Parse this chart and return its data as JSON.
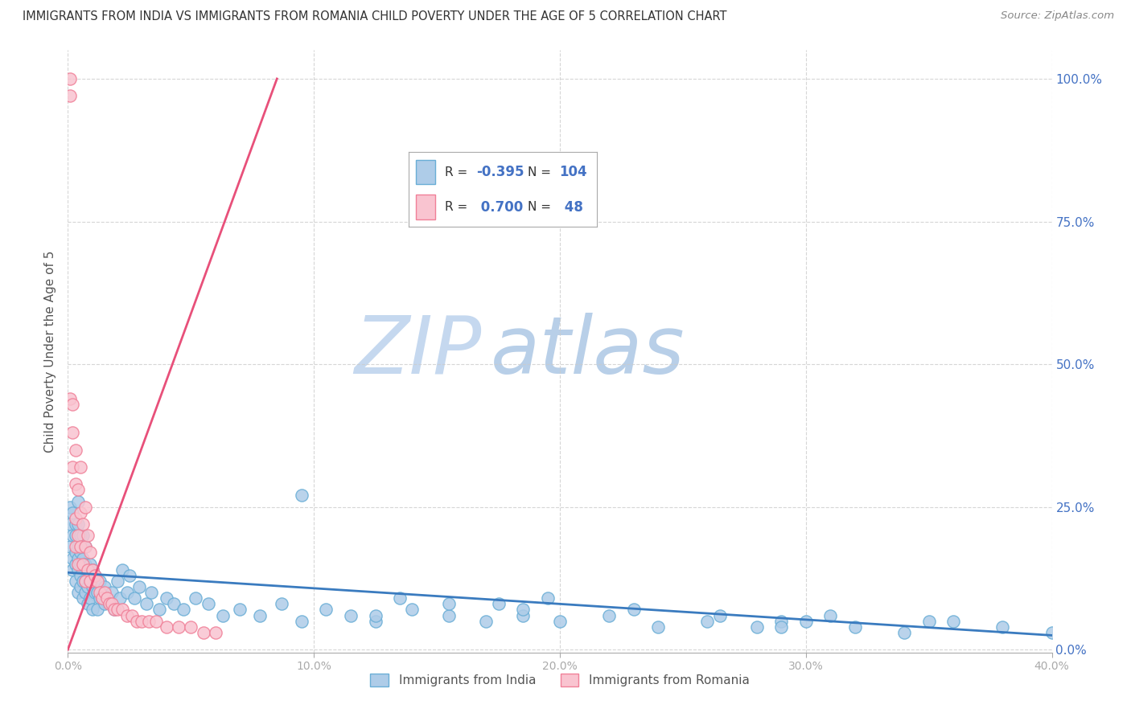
{
  "title": "IMMIGRANTS FROM INDIA VS IMMIGRANTS FROM ROMANIA CHILD POVERTY UNDER THE AGE OF 5 CORRELATION CHART",
  "source": "Source: ZipAtlas.com",
  "ylabel": "Child Poverty Under the Age of 5",
  "india_R": -0.395,
  "india_N": 104,
  "romania_R": 0.7,
  "romania_N": 48,
  "india_color": "#aecce8",
  "india_edge_color": "#6aaed6",
  "india_line_color": "#3a7bbf",
  "romania_color": "#f9c4d0",
  "romania_edge_color": "#f08098",
  "romania_line_color": "#e8507a",
  "title_color": "#333333",
  "source_color": "#666666",
  "r_value_color": "#4472c4",
  "n_value_color": "#4472c4",
  "label_color": "#4472c4",
  "watermark_zip_color": "#c5d8ef",
  "watermark_atlas_color": "#c5d8ef",
  "background_color": "#ffffff",
  "grid_color": "#cccccc",
  "axis_color": "#aaaaaa",
  "xlim": [
    0.0,
    0.4
  ],
  "ylim": [
    -0.005,
    1.05
  ],
  "india_trend_x": [
    0.0,
    0.4
  ],
  "india_trend_y": [
    0.135,
    0.025
  ],
  "romania_trend_x": [
    0.0,
    0.085
  ],
  "romania_trend_y": [
    0.0,
    1.0
  ],
  "india_x": [
    0.001,
    0.001,
    0.001,
    0.002,
    0.002,
    0.002,
    0.002,
    0.003,
    0.003,
    0.003,
    0.003,
    0.003,
    0.004,
    0.004,
    0.004,
    0.004,
    0.004,
    0.004,
    0.005,
    0.005,
    0.005,
    0.005,
    0.005,
    0.006,
    0.006,
    0.006,
    0.006,
    0.007,
    0.007,
    0.007,
    0.007,
    0.008,
    0.008,
    0.008,
    0.009,
    0.009,
    0.009,
    0.01,
    0.01,
    0.01,
    0.011,
    0.011,
    0.012,
    0.012,
    0.013,
    0.013,
    0.014,
    0.015,
    0.015,
    0.016,
    0.017,
    0.018,
    0.019,
    0.02,
    0.021,
    0.022,
    0.024,
    0.025,
    0.027,
    0.029,
    0.032,
    0.034,
    0.037,
    0.04,
    0.043,
    0.047,
    0.052,
    0.057,
    0.063,
    0.07,
    0.078,
    0.087,
    0.095,
    0.105,
    0.115,
    0.125,
    0.14,
    0.155,
    0.17,
    0.185,
    0.2,
    0.22,
    0.24,
    0.26,
    0.28,
    0.3,
    0.32,
    0.34,
    0.36,
    0.38,
    0.4,
    0.195,
    0.23,
    0.265,
    0.29,
    0.175,
    0.135,
    0.095,
    0.31,
    0.35,
    0.29,
    0.155,
    0.185,
    0.125
  ],
  "india_y": [
    0.18,
    0.22,
    0.25,
    0.16,
    0.2,
    0.24,
    0.14,
    0.15,
    0.2,
    0.17,
    0.22,
    0.12,
    0.14,
    0.18,
    0.22,
    0.1,
    0.16,
    0.26,
    0.13,
    0.17,
    0.2,
    0.11,
    0.15,
    0.12,
    0.16,
    0.2,
    0.09,
    0.12,
    0.15,
    0.1,
    0.18,
    0.11,
    0.14,
    0.08,
    0.12,
    0.15,
    0.09,
    0.11,
    0.14,
    0.07,
    0.1,
    0.13,
    0.1,
    0.07,
    0.09,
    0.12,
    0.09,
    0.08,
    0.11,
    0.09,
    0.08,
    0.1,
    0.07,
    0.12,
    0.09,
    0.14,
    0.1,
    0.13,
    0.09,
    0.11,
    0.08,
    0.1,
    0.07,
    0.09,
    0.08,
    0.07,
    0.09,
    0.08,
    0.06,
    0.07,
    0.06,
    0.08,
    0.05,
    0.07,
    0.06,
    0.05,
    0.07,
    0.06,
    0.05,
    0.06,
    0.05,
    0.06,
    0.04,
    0.05,
    0.04,
    0.05,
    0.04,
    0.03,
    0.05,
    0.04,
    0.03,
    0.09,
    0.07,
    0.06,
    0.05,
    0.08,
    0.09,
    0.27,
    0.06,
    0.05,
    0.04,
    0.08,
    0.07,
    0.06
  ],
  "romania_x": [
    0.001,
    0.001,
    0.001,
    0.002,
    0.002,
    0.002,
    0.003,
    0.003,
    0.003,
    0.003,
    0.004,
    0.004,
    0.004,
    0.005,
    0.005,
    0.005,
    0.006,
    0.006,
    0.007,
    0.007,
    0.007,
    0.008,
    0.008,
    0.009,
    0.009,
    0.01,
    0.011,
    0.012,
    0.013,
    0.014,
    0.015,
    0.016,
    0.017,
    0.018,
    0.019,
    0.02,
    0.022,
    0.024,
    0.026,
    0.028,
    0.03,
    0.033,
    0.036,
    0.04,
    0.045,
    0.05,
    0.055,
    0.06
  ],
  "romania_y": [
    1.0,
    0.97,
    0.44,
    0.43,
    0.38,
    0.32,
    0.35,
    0.29,
    0.23,
    0.18,
    0.28,
    0.2,
    0.15,
    0.32,
    0.24,
    0.18,
    0.22,
    0.15,
    0.25,
    0.18,
    0.12,
    0.2,
    0.14,
    0.17,
    0.12,
    0.14,
    0.13,
    0.12,
    0.1,
    0.09,
    0.1,
    0.09,
    0.08,
    0.08,
    0.07,
    0.07,
    0.07,
    0.06,
    0.06,
    0.05,
    0.05,
    0.05,
    0.05,
    0.04,
    0.04,
    0.04,
    0.03,
    0.03
  ]
}
